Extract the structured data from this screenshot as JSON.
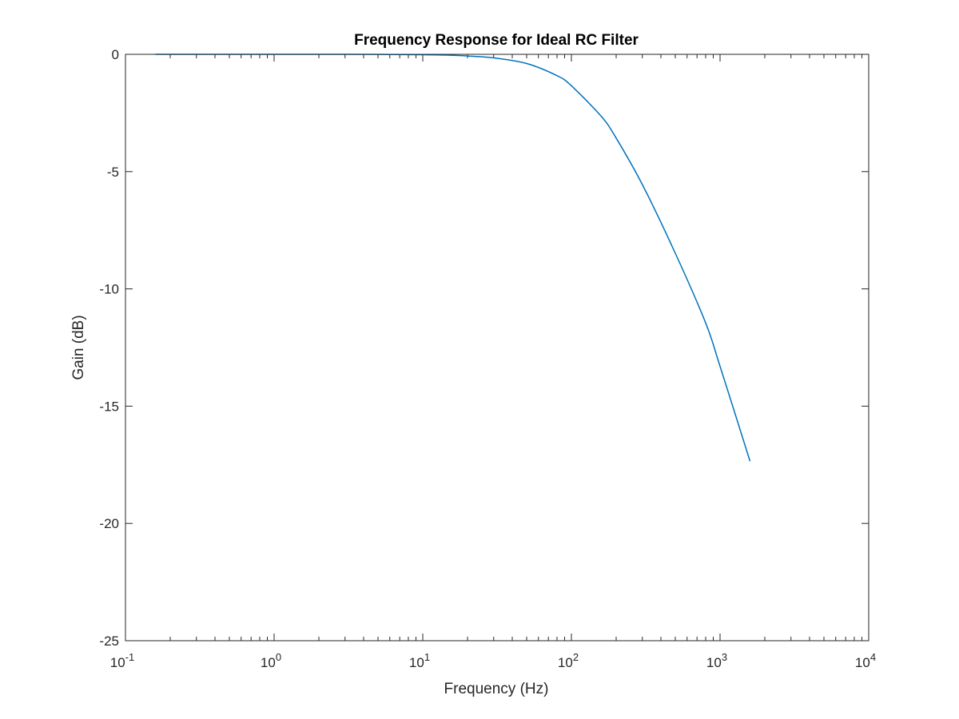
{
  "chart_data": {
    "type": "line",
    "title": "Frequency Response for Ideal RC Filter",
    "xlabel": "Frequency (Hz)",
    "ylabel": "Gain (dB)",
    "x_scale": "log",
    "xlim": [
      0.1,
      10000
    ],
    "ylim": [
      -25,
      0
    ],
    "x_ticks": [
      0.1,
      1,
      10,
      100,
      1000,
      10000
    ],
    "x_tick_labels": [
      {
        "base": "10",
        "exp": "-1"
      },
      {
        "base": "10",
        "exp": "0"
      },
      {
        "base": "10",
        "exp": "1"
      },
      {
        "base": "10",
        "exp": "2"
      },
      {
        "base": "10",
        "exp": "3"
      },
      {
        "base": "10",
        "exp": "4"
      }
    ],
    "y_ticks": [
      0,
      -5,
      -10,
      -15,
      -20,
      -25
    ],
    "y_tick_labels": [
      "0",
      "-5",
      "-10",
      "-15",
      "-20",
      "-25"
    ],
    "grid": false,
    "box": true,
    "series": [
      {
        "color": "#0072BD",
        "x": [
          0.159,
          0.3,
          0.5,
          1,
          2,
          5,
          10,
          15.9,
          20,
          30,
          50,
          80,
          100,
          159,
          200,
          300,
          500,
          800,
          1000,
          1591
        ],
        "y": [
          0,
          0,
          0,
          0,
          0,
          -0.004,
          -0.017,
          -0.04,
          -0.07,
          -0.15,
          -0.39,
          -0.91,
          -1.34,
          -2.65,
          -3.57,
          -5.55,
          -8.48,
          -11.45,
          -13.3,
          -17.35
        ]
      }
    ]
  }
}
